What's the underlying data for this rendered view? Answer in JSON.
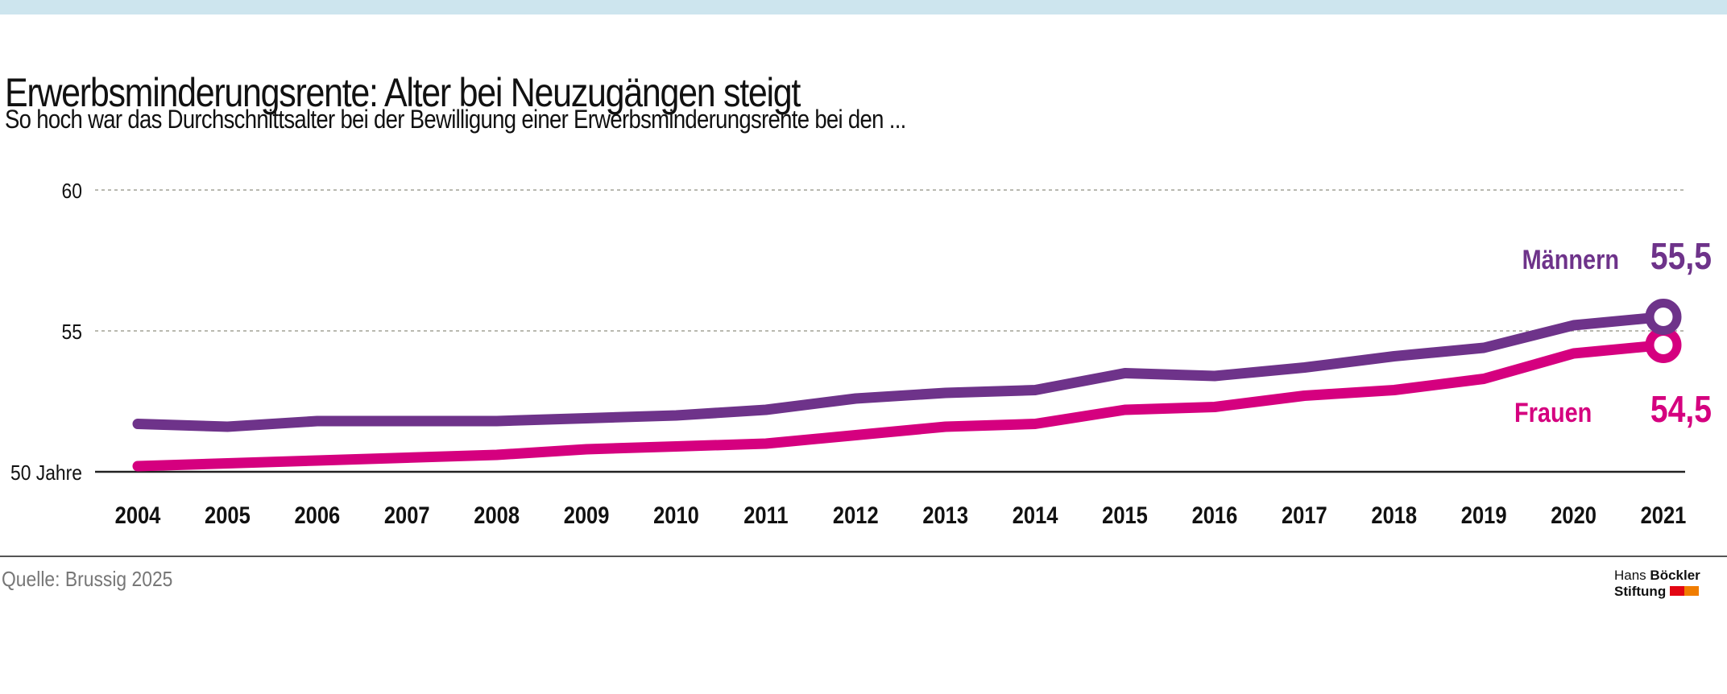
{
  "header": {
    "title": "Erwerbsminderungsrente: Alter bei Neuzugängen steigt",
    "subtitle": "So hoch war das Durchschnittsalter bei der Bewilligung einer Erwerbsminderungsrente bei den ..."
  },
  "footer": {
    "source": "Quelle: Brussig 2025",
    "logo": {
      "line1_light": "Hans",
      "line1_bold": "Böckler",
      "line2_bold": "Stiftung",
      "colors": [
        "#e30613",
        "#f07d00"
      ]
    }
  },
  "colors": {
    "maenner": "#6e338a",
    "frauen": "#d5007f",
    "grid": "#b9b9b0",
    "axis": "#222222",
    "topbar": "#cde5ee"
  },
  "chart_data": {
    "type": "line",
    "title": "Erwerbsminderungsrente: Alter bei Neuzugängen steigt",
    "subtitle": "So hoch war das Durchschnittsalter bei der Bewilligung einer Erwerbsminderungsrente bei den ...",
    "xlabel": "",
    "ylabel": "",
    "x": [
      "2004",
      "2005",
      "2006",
      "2007",
      "2008",
      "2009",
      "2010",
      "2011",
      "2012",
      "2013",
      "2014",
      "2015",
      "2016",
      "2017",
      "2018",
      "2019",
      "2020",
      "2021"
    ],
    "ylim": [
      50,
      60
    ],
    "yticks": [
      {
        "value": 50,
        "label": "50 Jahre"
      },
      {
        "value": 55,
        "label": "55"
      },
      {
        "value": 60,
        "label": "60"
      }
    ],
    "grid": true,
    "legend": "end-of-line labels (right)",
    "series": [
      {
        "name": "Männern",
        "end_label": "55,5",
        "values": [
          51.7,
          51.6,
          51.8,
          51.8,
          51.8,
          51.9,
          52.0,
          52.2,
          52.6,
          52.8,
          52.9,
          53.5,
          53.4,
          53.7,
          54.1,
          54.4,
          55.2,
          55.5
        ]
      },
      {
        "name": "Frauen",
        "end_label": "54,5",
        "values": [
          50.2,
          50.3,
          50.4,
          50.5,
          50.6,
          50.8,
          50.9,
          51.0,
          51.3,
          51.6,
          51.7,
          52.2,
          52.3,
          52.7,
          52.9,
          53.3,
          54.2,
          54.5
        ]
      }
    ],
    "source": "Quelle: Brussig 2025"
  }
}
